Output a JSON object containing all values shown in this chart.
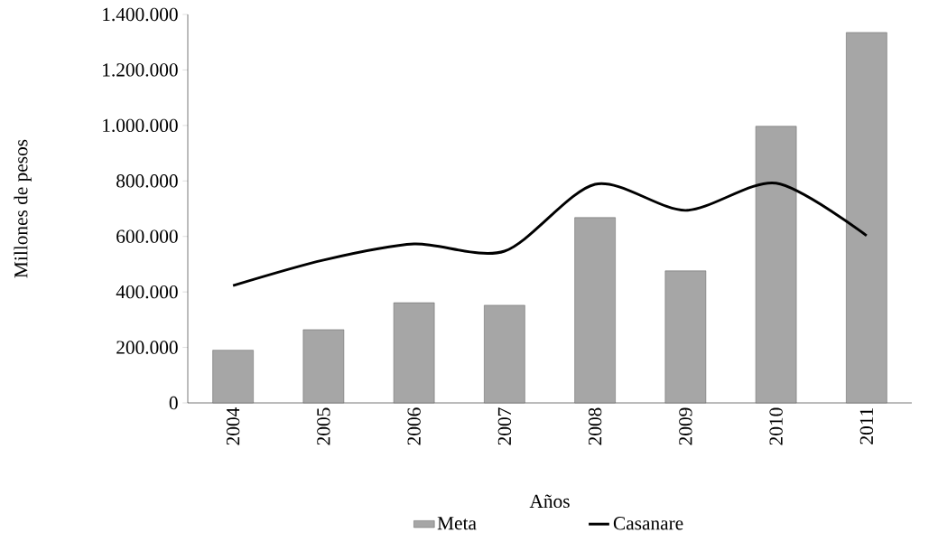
{
  "chart_data": {
    "type": "bar",
    "xlabel": "Años",
    "ylabel": "Millones de pesos",
    "categories": [
      "2004",
      "2005",
      "2006",
      "2007",
      "2008",
      "2009",
      "2010",
      "2011"
    ],
    "series": [
      {
        "name": "Meta",
        "color": "#a6a6a6",
        "values": [
          190000,
          264000,
          361000,
          352000,
          668000,
          476000,
          997000,
          1335000
        ]
      },
      {
        "name": "Casanare",
        "type": "line",
        "color": "#000000",
        "values": [
          423000,
          515000,
          573000,
          547000,
          788000,
          694000,
          792000,
          603000
        ]
      }
    ],
    "ylim": [
      0,
      1400000
    ],
    "yticks": [
      {
        "value": 0,
        "label": "0"
      },
      {
        "value": 200000,
        "label": "200.000"
      },
      {
        "value": 400000,
        "label": "400.000"
      },
      {
        "value": 600000,
        "label": "600.000"
      },
      {
        "value": 800000,
        "label": "800.000"
      },
      {
        "value": 1000000,
        "label": "1.000.000"
      },
      {
        "value": 1200000,
        "label": "1.200.000"
      },
      {
        "value": 1400000,
        "label": "1.400.000"
      }
    ],
    "legend": "bottom"
  }
}
